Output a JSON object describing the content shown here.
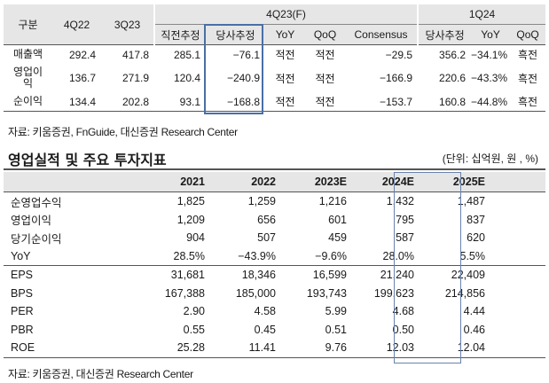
{
  "table1": {
    "group_header_q": "4Q23(F)",
    "group_header_n": "1Q24",
    "headers": {
      "label": "구분",
      "c1": "4Q22",
      "c2": "3Q23",
      "c3": "직전추정",
      "c4": "당사추정",
      "c5": "YoY",
      "c6": "QoQ",
      "c7": "Consensus",
      "c8": "당사추정",
      "c9": "YoY",
      "c10": "QoQ"
    },
    "rows": [
      {
        "label": "매출액",
        "c1": "292.4",
        "c2": "417.8",
        "c3": "285.1",
        "c4": "−76.1",
        "c5": "적전",
        "c6": "적전",
        "c7": "−29.5",
        "c8": "356.2",
        "c9": "−34.1%",
        "c10": "흑전"
      },
      {
        "label": "영업이익",
        "c1": "136.7",
        "c2": "271.9",
        "c3": "120.4",
        "c4": "−240.9",
        "c5": "적전",
        "c6": "적전",
        "c7": "−166.9",
        "c8": "220.6",
        "c9": "−43.3%",
        "c10": "흑전"
      },
      {
        "label": "순이익",
        "c1": "134.4",
        "c2": "202.8",
        "c3": "93.1",
        "c4": "−168.8",
        "c5": "적전",
        "c6": "적전",
        "c7": "−153.7",
        "c8": "160.8",
        "c9": "−44.8%",
        "c10": "흑전"
      }
    ],
    "source": "자료: 키움증권, FnGuide, 대신증권 Research Center"
  },
  "section2": {
    "title": "영업실적 및 주요 투자지표",
    "unit": "(단위: 십억원, 원 , %)",
    "years": [
      "2021",
      "2022",
      "2023E",
      "2024E",
      "2025E"
    ],
    "rows": [
      {
        "label": "순영업수익",
        "v": [
          "1,825",
          "1,259",
          "1,216",
          "1,432",
          "1,487"
        ]
      },
      {
        "label": "영업이익",
        "v": [
          "1,209",
          "656",
          "601",
          "795",
          "837"
        ]
      },
      {
        "label": "당기순이익",
        "v": [
          "904",
          "507",
          "459",
          "587",
          "620"
        ]
      },
      {
        "label": "YoY",
        "v": [
          "28.5%",
          "−43.9%",
          "−9.6%",
          "28.0%",
          "5.5%"
        ]
      },
      {
        "label": "EPS",
        "v": [
          "31,681",
          "18,346",
          "16,599",
          "21,240",
          "22,409"
        ]
      },
      {
        "label": "BPS",
        "v": [
          "167,388",
          "185,000",
          "193,743",
          "199,623",
          "214,856"
        ]
      },
      {
        "label": "PER",
        "v": [
          "2.90",
          "4.58",
          "5.99",
          "4.68",
          "4.44"
        ]
      },
      {
        "label": "PBR",
        "v": [
          "0.55",
          "0.45",
          "0.51",
          "0.50",
          "0.46"
        ]
      },
      {
        "label": "ROE",
        "v": [
          "25.28",
          "11.41",
          "9.76",
          "12.03",
          "12.04"
        ]
      }
    ],
    "source": "자료: 키움증권, 대신증권 Research Center"
  }
}
